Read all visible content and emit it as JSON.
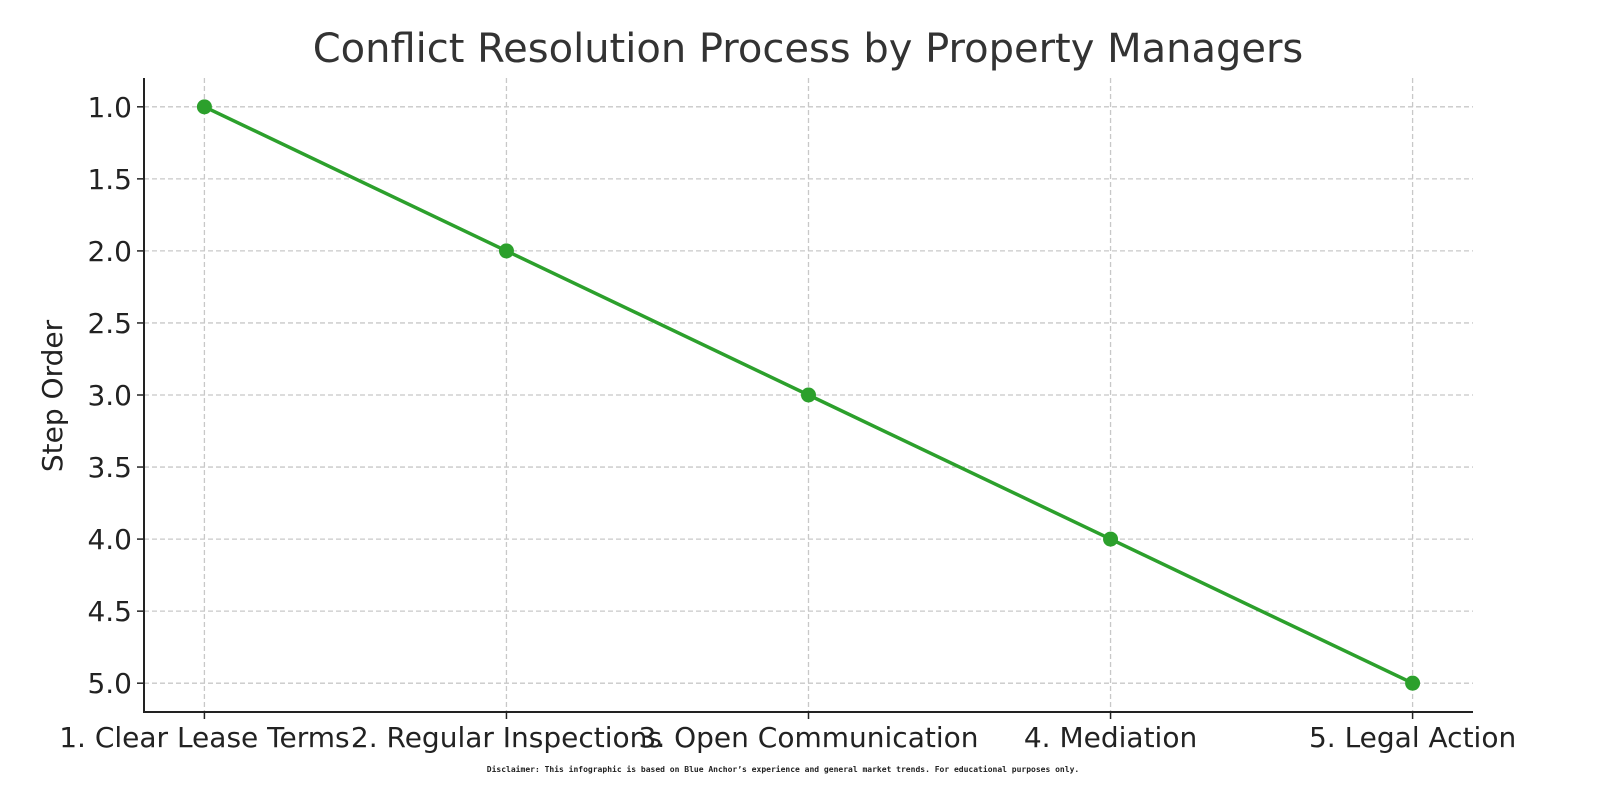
{
  "chart_data": {
    "type": "line",
    "title": "Conflict Resolution Process by Property Managers",
    "xlabel": "",
    "ylabel": "Step Order",
    "categories": [
      "1. Clear Lease Terms",
      "2. Regular Inspections",
      "3. Open Communication",
      "4. Mediation",
      "5. Legal Action"
    ],
    "values": [
      1,
      2,
      3,
      4,
      5
    ],
    "ylim": [
      5.2,
      0.8
    ],
    "y_inverted": true,
    "yticks": [
      "1.0",
      "1.5",
      "2.0",
      "2.5",
      "3.0",
      "3.5",
      "4.0",
      "4.5",
      "5.0"
    ],
    "grid": true,
    "grid_style": "dashed",
    "color": "#2ca02c",
    "marker": "circle"
  },
  "disclaimer": "Disclaimer: This infographic is based on Blue Anchor’s experience and general market trends. For educational purposes only."
}
